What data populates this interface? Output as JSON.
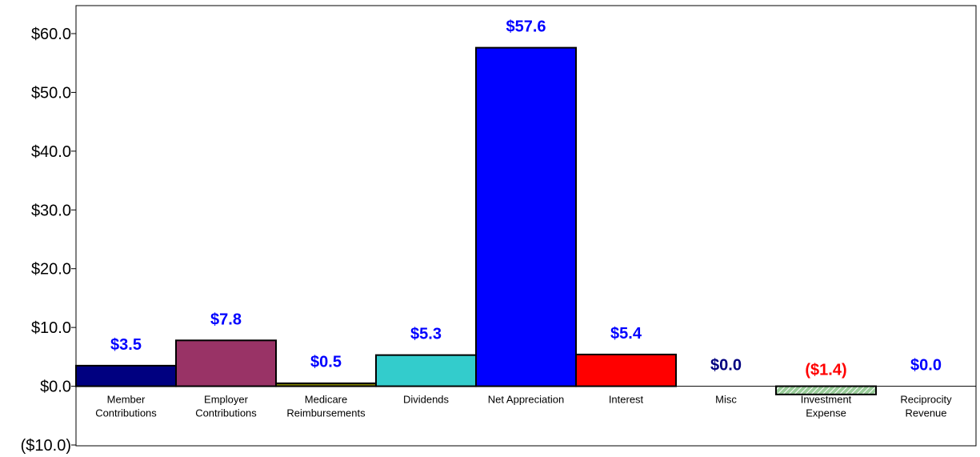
{
  "chart_data": {
    "type": "bar",
    "categories": [
      [
        "Member",
        "Contributions"
      ],
      [
        "Employer",
        "Contributions"
      ],
      [
        "Medicare",
        "Reimbursements"
      ],
      [
        "Dividends"
      ],
      [
        "Net Appreciation"
      ],
      [
        "Interest"
      ],
      [
        "Misc"
      ],
      [
        "Investment",
        "Expense"
      ],
      [
        "Reciprocity",
        "Revenue"
      ]
    ],
    "values": [
      3.5,
      7.8,
      0.5,
      5.3,
      57.6,
      5.4,
      0.0,
      -1.4,
      0.0
    ],
    "data_labels": [
      "$3.5",
      "$7.8",
      "$0.5",
      "$5.3",
      "$57.6",
      "$5.4",
      "$0.0",
      "($1.4)",
      "$0.0"
    ],
    "bar_colors": [
      "#000080",
      "#993366",
      "#808000",
      "#33CCCC",
      "#0000FF",
      "#FF0000",
      "#000080",
      "#99CC99",
      "#0000FF"
    ],
    "label_colors": [
      "#0000FF",
      "#0000FF",
      "#0000FF",
      "#0000FF",
      "#0000FF",
      "#0000FF",
      "#000080",
      "#FF0000",
      "#0000FF"
    ],
    "hatched": [
      false,
      false,
      false,
      false,
      false,
      false,
      false,
      true,
      false
    ],
    "ylim": [
      -10,
      60
    ],
    "yticks": [
      -10,
      0,
      10,
      20,
      30,
      40,
      50,
      60
    ],
    "ytick_labels": [
      "($10.0)",
      "$0.0",
      "$10.0",
      "$20.0",
      "$30.0",
      "$40.0",
      "$50.0",
      "$60.0"
    ],
    "title": "",
    "xlabel": "",
    "ylabel": "",
    "grid": false,
    "legend": "none"
  }
}
